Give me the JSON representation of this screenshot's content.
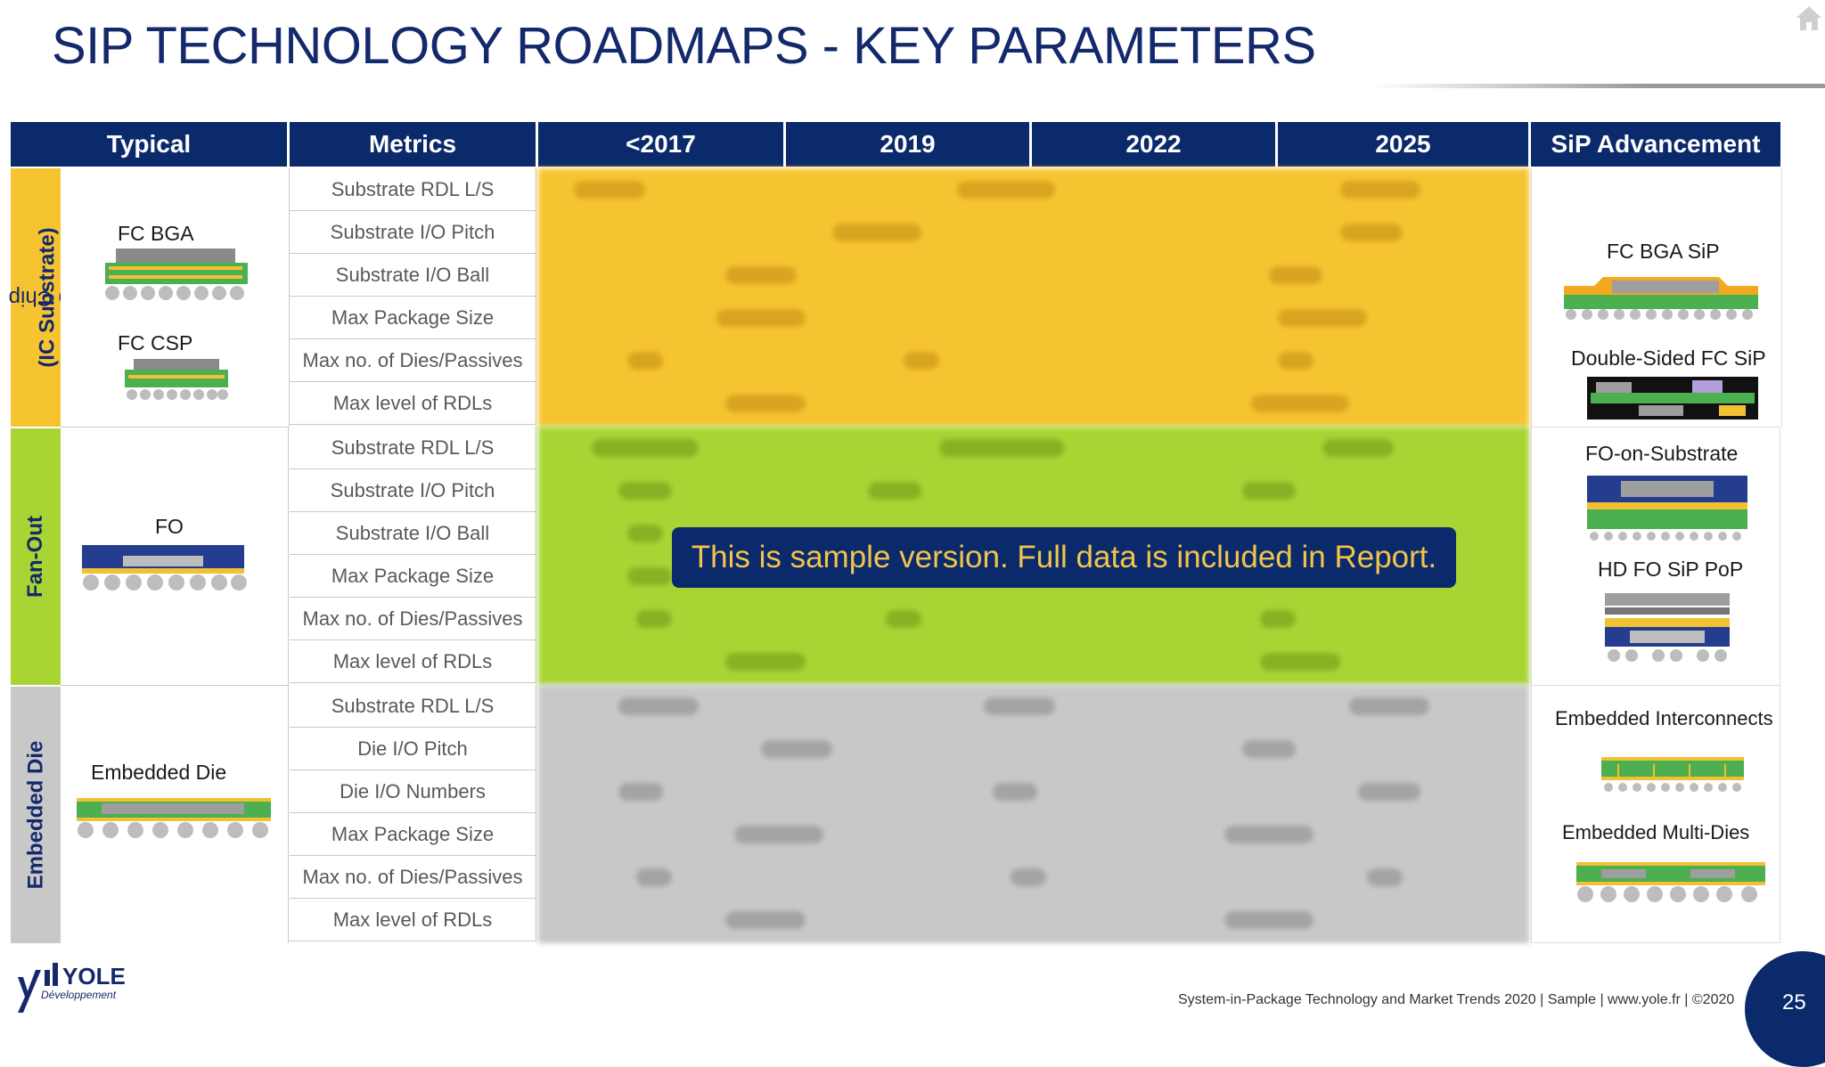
{
  "title": "SIP TECHNOLOGY ROADMAPS - KEY PARAMETERS",
  "headers": [
    "Typical",
    "Metrics",
    "<2017",
    "2019",
    "2022",
    "2025",
    "SiP Advancement"
  ],
  "groups": [
    {
      "side_plain": "Flip Chip ",
      "side_bold": "(IC Substrate)",
      "color": "#f7c431",
      "typical": [
        "FC BGA",
        "FC CSP"
      ],
      "metrics": [
        "Substrate RDL L/S",
        "Substrate I/O Pitch",
        "Substrate I/O Ball",
        "Max Package Size",
        "Max no. of Dies/Passives",
        "Max level of RDLs"
      ],
      "advancement": [
        "FC BGA SiP",
        "Double-Sided FC SiP"
      ]
    },
    {
      "side_plain": "",
      "side_bold": "Fan-Out",
      "color": "#a8d534",
      "typical": [
        "FO"
      ],
      "metrics": [
        "Substrate RDL L/S",
        "Substrate I/O Pitch",
        "Substrate I/O Ball",
        "Max Package Size",
        "Max no. of Dies/Passives",
        "Max level of RDLs"
      ],
      "advancement": [
        "FO-on-Substrate",
        "HD FO SiP PoP"
      ]
    },
    {
      "side_plain": "",
      "side_bold": "Embedded Die",
      "color": "#c8c8c8",
      "typical": [
        "Embedded Die"
      ],
      "metrics": [
        "Substrate RDL L/S",
        "Die I/O Pitch",
        "Die I/O Numbers",
        "Max Package Size",
        "Max no. of Dies/Passives",
        "Max level of RDLs"
      ],
      "advancement": [
        "Embedded Interconnects",
        "Embedded Multi-Dies"
      ]
    }
  ],
  "banner": "This is sample version. Full data is included in Report.",
  "footer": "System-in-Package Technology and Market Trends 2020 | Sample | www.yole.fr | ©2020",
  "page_number": "25",
  "logo_text": {
    "brand": "YOLE",
    "sub": "Développement"
  }
}
